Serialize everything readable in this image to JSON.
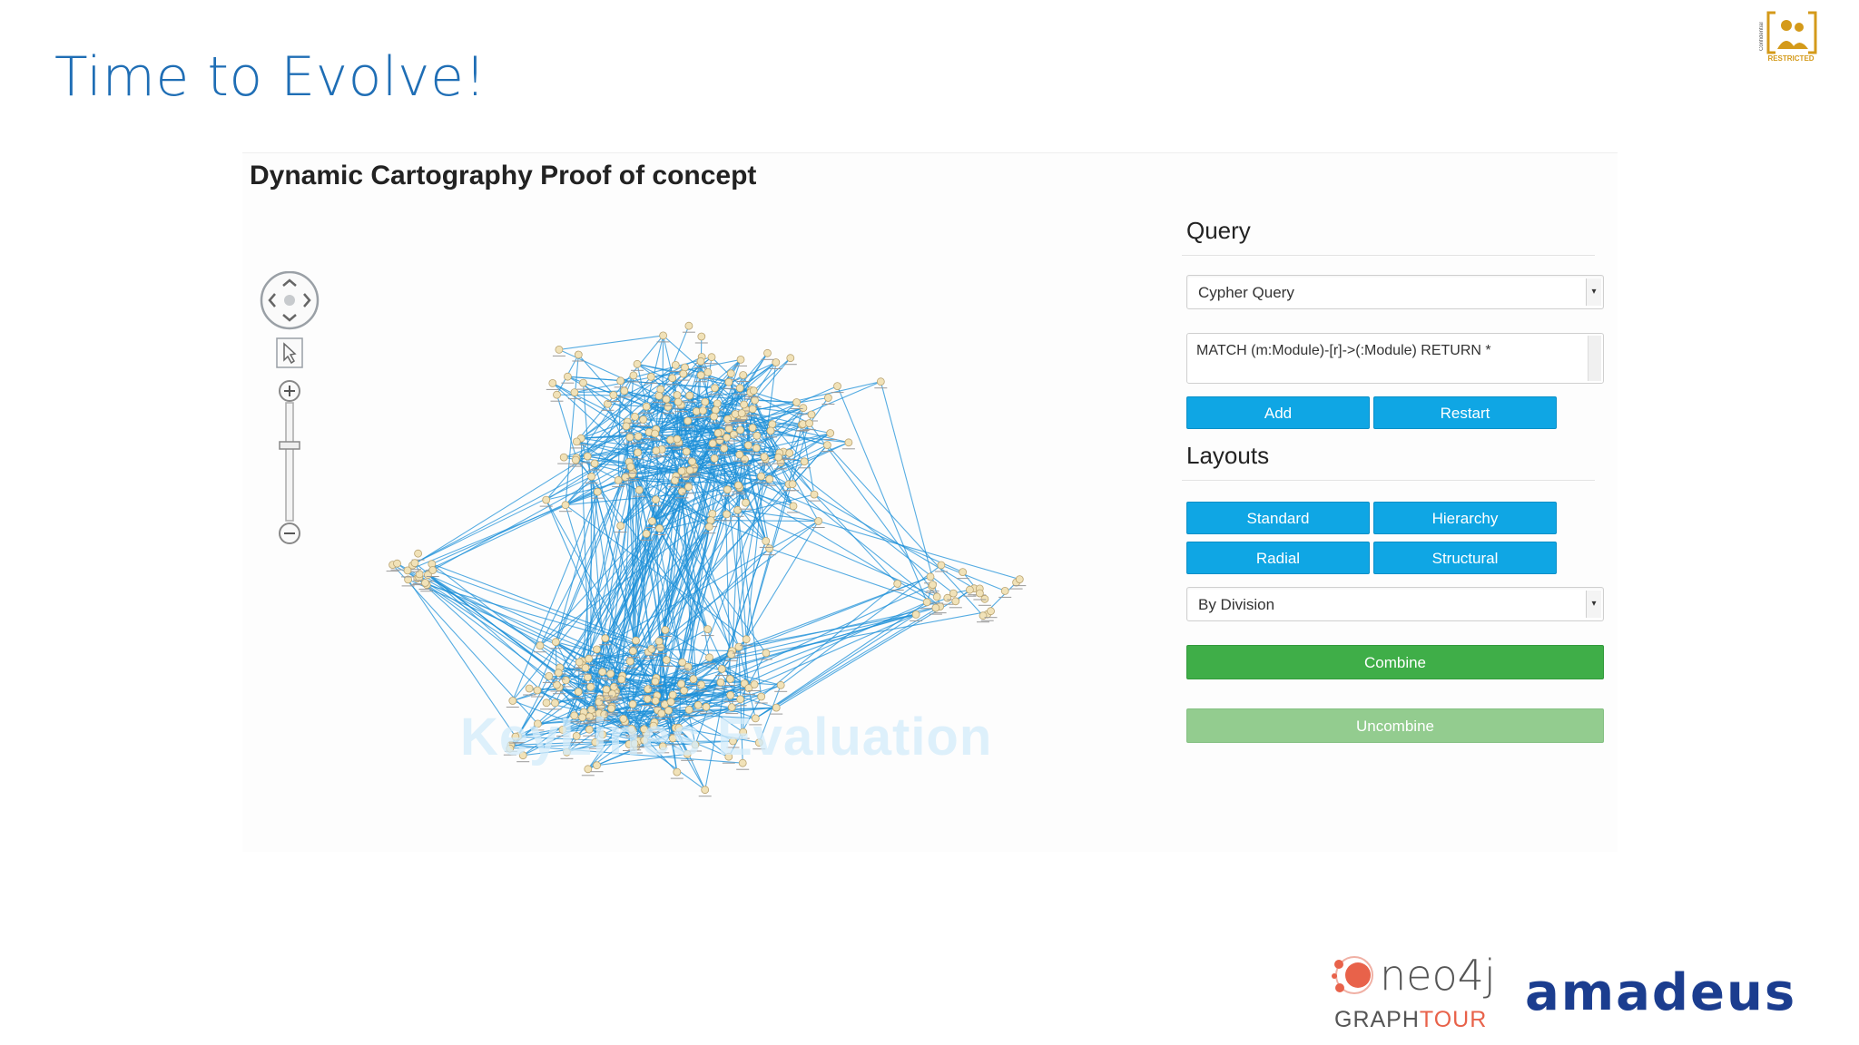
{
  "slide": {
    "title": "Time to Evolve!",
    "badge_top_text": "Confidential",
    "badge_label": "RESTRICTED"
  },
  "app": {
    "title": "Dynamic Cartography Proof of concept",
    "watermark": "KeyLines Evaluation"
  },
  "query_panel": {
    "heading": "Query",
    "query_type": "Cypher Query",
    "query_text": "MATCH (m:Module)-[r]->(:Module) RETURN *",
    "add_label": "Add",
    "restart_label": "Restart"
  },
  "layouts_panel": {
    "heading": "Layouts",
    "standard_label": "Standard",
    "hierarchy_label": "Hierarchy",
    "radial_label": "Radial",
    "structural_label": "Structural",
    "group_by": "By Division",
    "combine_label": "Combine",
    "uncombine_label": "Uncombine"
  },
  "logos": {
    "neo4j": "neo4j",
    "graphtour_1": "GRAPH",
    "graphtour_2": "TOUR",
    "amadeus": "amadeus"
  },
  "icons": {
    "pan": "pan-control-icon",
    "select": "pointer-select-icon",
    "zoom_in": "zoom-in-icon",
    "zoom_out": "zoom-out-icon"
  },
  "colors": {
    "title_blue": "#1f6eb5",
    "button_blue": "#0fa6e4",
    "button_green": "#3fae48",
    "edge_blue": "#1e90d8",
    "amadeus_navy": "#1b3d8f",
    "neo4j_red": "#e8624a"
  }
}
